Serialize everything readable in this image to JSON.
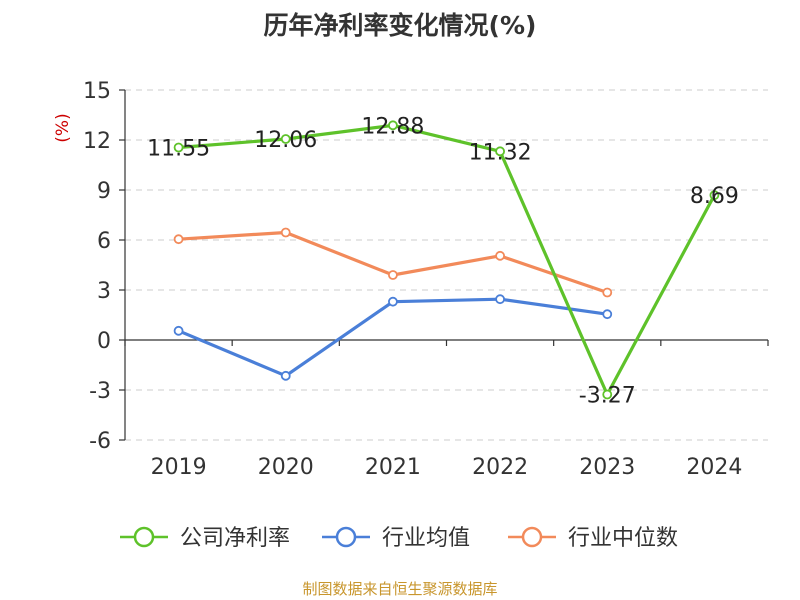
{
  "chart_data": {
    "type": "line",
    "title": "历年净利率变化情况(%)",
    "y_unit": "(%)",
    "categories": [
      "2019",
      "2020",
      "2021",
      "2022",
      "2023",
      "2024"
    ],
    "ylim": [
      -6,
      15
    ],
    "yticks": [
      -6,
      -3,
      0,
      3,
      6,
      9,
      12,
      15
    ],
    "grid": true,
    "legend_position": "bottom",
    "series": [
      {
        "name": "公司净利率",
        "color": "#5ec22a",
        "values": [
          11.55,
          12.06,
          12.88,
          11.32,
          -3.27,
          8.69
        ],
        "labels": [
          "11.55",
          "12.06",
          "12.88",
          "11.32",
          "-3.27",
          "8.69"
        ]
      },
      {
        "name": "行业均值",
        "color": "#4a7fd8",
        "values": [
          0.55,
          -2.15,
          2.3,
          2.45,
          1.55,
          null
        ]
      },
      {
        "name": "行业中位数",
        "color": "#f28a5a",
        "values": [
          6.05,
          6.45,
          3.9,
          5.05,
          2.85,
          null
        ]
      }
    ]
  },
  "source": "制图数据来自恒生聚源数据库"
}
